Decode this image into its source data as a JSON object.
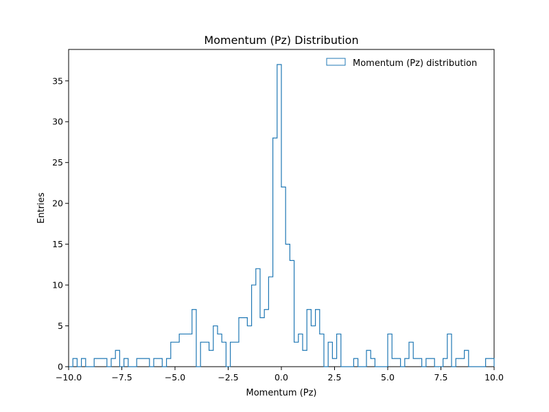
{
  "chart_data": {
    "type": "histogram",
    "title": "Momentum (Pz) Distribution",
    "xlabel": "Momentum (Pz)",
    "ylabel": "Entries",
    "xlim": [
      -10,
      10
    ],
    "ylim": [
      0,
      38.85
    ],
    "x_ticks": [
      "−10.0",
      "−7.5",
      "−5.0",
      "−2.5",
      "0.0",
      "2.5",
      "5.0",
      "7.5",
      "10.0"
    ],
    "x_tick_values": [
      -10,
      -7.5,
      -5,
      -2.5,
      0,
      2.5,
      5,
      7.5,
      10
    ],
    "y_ticks": [
      "0",
      "5",
      "10",
      "15",
      "20",
      "25",
      "30",
      "35"
    ],
    "y_tick_values": [
      0,
      5,
      10,
      15,
      20,
      25,
      30,
      35
    ],
    "legend": {
      "position": "top-right",
      "entries": [
        "Momentum (Pz) distribution"
      ]
    },
    "colors": {
      "series": "#1f77b4"
    },
    "grid": false,
    "bin_edges_start": -10,
    "bin_width": 0.2,
    "series": [
      {
        "name": "Momentum (Pz) distribution",
        "values": [
          0,
          1,
          0,
          1,
          0,
          0,
          1,
          1,
          1,
          0,
          1,
          2,
          0,
          1,
          0,
          0,
          1,
          1,
          1,
          0,
          1,
          1,
          0,
          1,
          3,
          3,
          4,
          4,
          4,
          7,
          0,
          3,
          3,
          2,
          5,
          4,
          3,
          0,
          3,
          3,
          6,
          6,
          5,
          10,
          12,
          6,
          7,
          11,
          28,
          37,
          22,
          15,
          13,
          3,
          4,
          2,
          7,
          5,
          7,
          4,
          0,
          3,
          1,
          4,
          0,
          0,
          0,
          1,
          0,
          0,
          2,
          1,
          0,
          0,
          0,
          4,
          1,
          1,
          0,
          1,
          3,
          1,
          1,
          0,
          1,
          1,
          0,
          0,
          1,
          4,
          0,
          1,
          1,
          2,
          0,
          0,
          0,
          0,
          1,
          1
        ]
      }
    ]
  }
}
